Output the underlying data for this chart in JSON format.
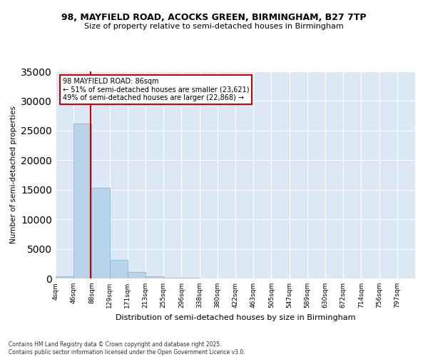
{
  "title": "98, MAYFIELD ROAD, ACOCKS GREEN, BIRMINGHAM, B27 7TP",
  "subtitle": "Size of property relative to semi-detached houses in Birmingham",
  "xlabel": "Distribution of semi-detached houses by size in Birmingham",
  "ylabel": "Number of semi-detached properties",
  "bar_color": "#b8d4ea",
  "bar_edge_color": "#7aafd4",
  "background_color": "#dce8f5",
  "property_line_color": "#cc0000",
  "property_value": 86,
  "annotation_line1": "98 MAYFIELD ROAD: 86sqm",
  "annotation_line2": "← 51% of semi-detached houses are smaller (23,621)",
  "annotation_line3": "49% of semi-detached houses are larger (22,868) →",
  "bin_edges": [
    4,
    46,
    88,
    129,
    171,
    213,
    255,
    296,
    338,
    380,
    422,
    463,
    505,
    547,
    589,
    630,
    672,
    714,
    756,
    797,
    839
  ],
  "bin_counts": [
    380,
    26200,
    15300,
    3100,
    1050,
    350,
    150,
    80,
    50,
    30,
    20,
    15,
    10,
    8,
    6,
    5,
    4,
    3,
    2,
    2
  ],
  "ylim": [
    0,
    35000
  ],
  "yticks": [
    0,
    5000,
    10000,
    15000,
    20000,
    25000,
    30000,
    35000
  ],
  "footer": "Contains HM Land Registry data © Crown copyright and database right 2025.\nContains public sector information licensed under the Open Government Licence v3.0."
}
